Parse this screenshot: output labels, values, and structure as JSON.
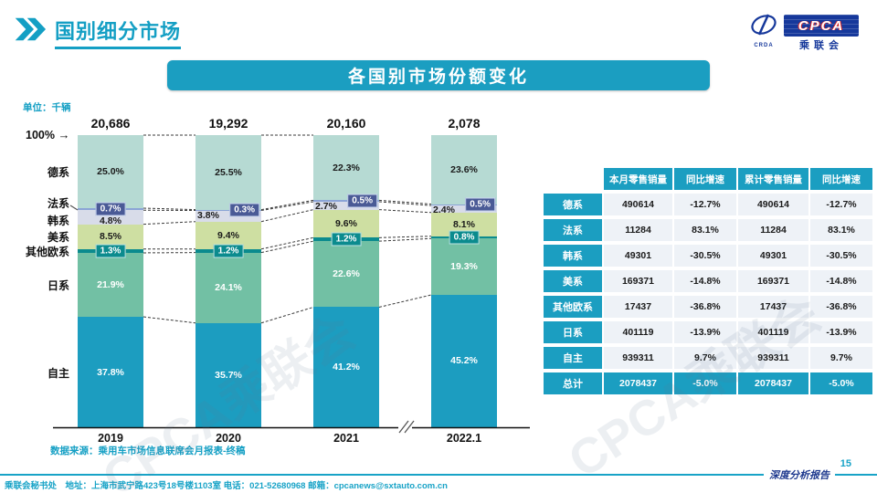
{
  "page": {
    "title": "国别细分市场",
    "banner": "各国别市场份额变化",
    "unit_label": "单位：千辆",
    "hundred_label": "100%",
    "arrow": "→",
    "source": "数据来源：乘用车市场信息联席会月报表-终稿",
    "footer_left": "乘联会秘书处　地址：上海市武宁路423号18号楼1103室 电话：021-52680968 邮箱：cpcanews@sxtauto.com.cn",
    "footer_right": "深度分析报告",
    "page_number": "15",
    "watermark": "CPCA乘联会"
  },
  "logo": {
    "name": "CPCA",
    "caption": "乘联会",
    "emblem_caption": "CRDA"
  },
  "colors": {
    "accent": "#149fc4",
    "teal": "#1b9ec1",
    "navy": "#16389b",
    "badge_blue": "#4a5a96",
    "badge_teal": "#0b8b8e"
  },
  "chart_data": {
    "type": "bar",
    "stacked": true,
    "unit": "千辆",
    "title": "各国别市场份额变化",
    "categories": [
      "2019",
      "2020",
      "2021",
      "2022.1"
    ],
    "totals": [
      "20,686",
      "19,292",
      "20,160",
      "2,078"
    ],
    "ylim": [
      0,
      100
    ],
    "axis_break_before": "2022.1",
    "series": [
      {
        "name": "德系",
        "values": [
          25.0,
          25.5,
          22.3,
          23.6
        ],
        "color": "#b6dad3",
        "label_color": "#1a1a1a",
        "badge": false
      },
      {
        "name": "法系",
        "values": [
          0.7,
          0.3,
          0.5,
          0.5
        ],
        "color": "#8ba4d6",
        "label_color": "#ffffff",
        "badge": true,
        "badge_bg": "#4a5a96",
        "badge_border": "#c9d6f0"
      },
      {
        "name": "韩系",
        "values": [
          4.8,
          3.8,
          2.7,
          2.4
        ],
        "color": "#d8dce9",
        "label_color": "#1a1a1a",
        "badge": false
      },
      {
        "name": "美系",
        "values": [
          8.5,
          9.4,
          9.6,
          8.1
        ],
        "color": "#cedfa2",
        "label_color": "#1a1a1a",
        "badge": false
      },
      {
        "name": "其他欧系",
        "values": [
          1.3,
          1.2,
          1.2,
          0.8
        ],
        "color": "#0b8b8e",
        "label_color": "#ffffff",
        "badge": true,
        "badge_bg": "#0b8b8e",
        "badge_border": "#bfe3e3"
      },
      {
        "name": "日系",
        "values": [
          21.9,
          24.1,
          22.6,
          19.3
        ],
        "color": "#72c0a4",
        "label_color": "#ffffff",
        "badge": false
      },
      {
        "name": "自主",
        "values": [
          37.8,
          35.7,
          41.2,
          45.2
        ],
        "color": "#1c9dc0",
        "label_color": "#ffffff",
        "badge": false
      }
    ]
  },
  "table": {
    "headers": [
      "",
      "本月零售销量",
      "同比增速",
      "累计零售销量",
      "同比增速"
    ],
    "rows": [
      {
        "label": "德系",
        "cells": [
          "490614",
          "-12.7%",
          "490614",
          "-12.7%"
        ],
        "is_total": false
      },
      {
        "label": "法系",
        "cells": [
          "11284",
          "83.1%",
          "11284",
          "83.1%"
        ],
        "is_total": false
      },
      {
        "label": "韩系",
        "cells": [
          "49301",
          "-30.5%",
          "49301",
          "-30.5%"
        ],
        "is_total": false
      },
      {
        "label": "美系",
        "cells": [
          "169371",
          "-14.8%",
          "169371",
          "-14.8%"
        ],
        "is_total": false
      },
      {
        "label": "其他欧系",
        "cells": [
          "17437",
          "-36.8%",
          "17437",
          "-36.8%"
        ],
        "is_total": false
      },
      {
        "label": "日系",
        "cells": [
          "401119",
          "-13.9%",
          "401119",
          "-13.9%"
        ],
        "is_total": false
      },
      {
        "label": "自主",
        "cells": [
          "939311",
          "9.7%",
          "939311",
          "9.7%"
        ],
        "is_total": false
      },
      {
        "label": "总计",
        "cells": [
          "2078437",
          "-5.0%",
          "2078437",
          "-5.0%"
        ],
        "is_total": true
      }
    ]
  }
}
